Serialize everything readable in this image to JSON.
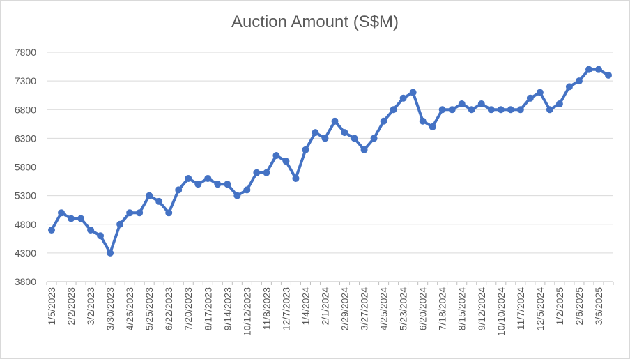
{
  "chart_data": {
    "type": "line",
    "title": "Auction Amount (S$M)",
    "xlabel": "",
    "ylabel": "",
    "ylim": [
      3800,
      7800
    ],
    "yticks": [
      3800,
      4300,
      4800,
      5300,
      5800,
      6300,
      6800,
      7300,
      7800
    ],
    "grid": true,
    "legend": "none",
    "series_color": "#4472c4",
    "x_tick_labels": [
      "1/5/2023",
      "2/2/2023",
      "3/2/2023",
      "3/30/2023",
      "4/26/2023",
      "5/25/2023",
      "6/22/2023",
      "7/20/2023",
      "8/17/2023",
      "9/14/2023",
      "10/12/2023",
      "11/8/2023",
      "12/7/2023",
      "1/4/2024",
      "2/1/2024",
      "2/29/2024",
      "3/27/2024",
      "4/25/2024",
      "5/23/2024",
      "6/20/2024",
      "7/18/2024",
      "8/15/2024",
      "9/12/2024",
      "10/10/2024",
      "11/7/2024",
      "12/5/2024",
      "1/2/2025",
      "2/6/2025",
      "3/6/2025"
    ],
    "x": [
      "1/5/2023",
      "1/19/2023",
      "2/2/2023",
      "2/16/2023",
      "3/2/2023",
      "3/16/2023",
      "3/30/2023",
      "4/13/2023",
      "4/26/2023",
      "5/11/2023",
      "5/25/2023",
      "6/8/2023",
      "6/22/2023",
      "7/6/2023",
      "7/20/2023",
      "8/3/2023",
      "8/17/2023",
      "8/31/2023",
      "9/14/2023",
      "9/28/2023",
      "10/12/2023",
      "10/26/2023",
      "11/8/2023",
      "11/23/2023",
      "12/7/2023",
      "12/21/2023",
      "1/4/2024",
      "1/18/2024",
      "2/1/2024",
      "2/15/2024",
      "2/29/2024",
      "3/14/2024",
      "3/27/2024",
      "4/11/2024",
      "4/25/2024",
      "5/9/2024",
      "5/23/2024",
      "6/6/2024",
      "6/20/2024",
      "7/4/2024",
      "7/18/2024",
      "8/1/2024",
      "8/15/2024",
      "8/29/2024",
      "9/12/2024",
      "9/26/2024",
      "10/10/2024",
      "10/24/2024",
      "11/7/2024",
      "11/21/2024",
      "12/5/2024",
      "12/19/2024",
      "1/2/2025",
      "1/16/2025",
      "2/6/2025",
      "2/20/2025",
      "3/6/2025",
      "3/20/2025"
    ],
    "values": [
      4700,
      5000,
      4900,
      4900,
      4700,
      4600,
      4300,
      4800,
      5000,
      5000,
      5300,
      5200,
      5000,
      5400,
      5600,
      5500,
      5600,
      5500,
      5500,
      5300,
      5400,
      5700,
      5700,
      6000,
      5900,
      5600,
      6100,
      6400,
      6300,
      6600,
      6400,
      6300,
      6100,
      6300,
      6600,
      6800,
      7000,
      7100,
      6600,
      6500,
      6800,
      6800,
      6900,
      6800,
      6900,
      6800,
      6800,
      6800,
      6800,
      7000,
      7100,
      6800,
      6900,
      7200,
      7300,
      7500,
      7500,
      7400
    ]
  }
}
